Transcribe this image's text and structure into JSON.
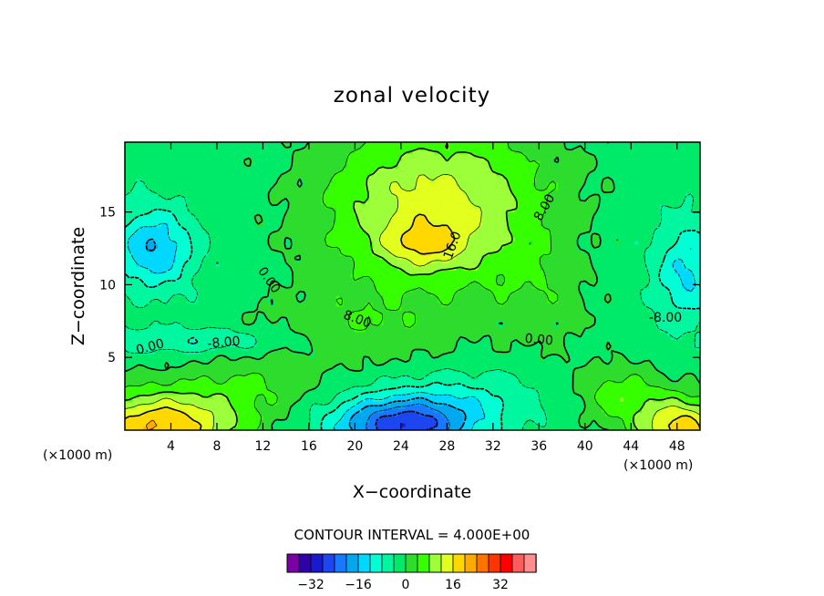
{
  "chart_data": {
    "type": "contour",
    "title": "zonal velocity",
    "xlabel": "X−coordinate",
    "ylabel": "Z−coordinate",
    "x_unit": "(×1000 m)",
    "y_unit": "(×1000 m)",
    "xlim": [
      0,
      50
    ],
    "ylim": [
      0,
      19.8
    ],
    "x_ticks": [
      4,
      8,
      12,
      16,
      20,
      24,
      28,
      32,
      36,
      40,
      44,
      48
    ],
    "x_tick_labels": [
      "4",
      "8",
      "12",
      "16",
      "20",
      "24",
      "28",
      "32",
      "36",
      "40",
      "44",
      "48"
    ],
    "y_ticks": [
      5,
      10,
      15
    ],
    "y_tick_labels": [
      "5",
      "10",
      "15"
    ],
    "contour_interval_text": "CONTOUR INTERVAL = 4.000E+00",
    "contour_labels": [
      {
        "text": "16.0",
        "x": 28.5,
        "y": 12.7,
        "angle": -70
      },
      {
        "text": "8.00",
        "x": 36.5,
        "y": 15.3,
        "angle": -60
      },
      {
        "text": "0.00",
        "x": 12.5,
        "y": 10.3,
        "angle": 55
      },
      {
        "text": "8.00",
        "x": 20.2,
        "y": 7.6,
        "angle": 20
      },
      {
        "text": "0.00",
        "x": 36.0,
        "y": 6.2,
        "angle": 5
      },
      {
        "text": "-8.00",
        "x": 47.0,
        "y": 7.7,
        "angle": 0
      },
      {
        "text": "0.00",
        "x": 2.2,
        "y": 5.7,
        "angle": -15
      },
      {
        "text": "-8.00",
        "x": 8.6,
        "y": 6.0,
        "angle": -5
      }
    ],
    "contour_style": "solid lines for positive and zero values, dashed lines for negative values",
    "colorbar": {
      "levels": [
        -36,
        -32,
        -28,
        -24,
        -20,
        -16,
        -12,
        -8,
        -4,
        0,
        4,
        8,
        12,
        16,
        20,
        24,
        28,
        32,
        36
      ],
      "colors": [
        "#7a00a6",
        "#3000a8",
        "#1a1acc",
        "#1d46f0",
        "#1a78ff",
        "#00a8f0",
        "#00d8ff",
        "#00ffd4",
        "#00f7a0",
        "#00ea6a",
        "#2ddc2d",
        "#36ff00",
        "#9cff3a",
        "#e2ff1e",
        "#ffd800",
        "#ffaa00",
        "#ff7300",
        "#ff3500",
        "#ff0000",
        "#ff5c5c",
        "#ff8e8e"
      ],
      "tick_values": [
        -32,
        -16,
        0,
        16,
        32
      ],
      "tick_labels": [
        "−32",
        "−16",
        "0",
        "16",
        "32"
      ]
    },
    "field_features": [
      {
        "desc": "positive jet maximum",
        "x": 26.0,
        "y": 12.6,
        "value": 22
      },
      {
        "desc": "upper-center positive region",
        "x": 27.0,
        "y": 15.5,
        "value": 14
      },
      {
        "desc": "negative cell left",
        "x": 2.5,
        "y": 12.5,
        "value": -20
      },
      {
        "desc": "negative cell right",
        "x": 49.0,
        "y": 11.0,
        "value": -14
      },
      {
        "desc": "negative cell bottom center",
        "x": 23.5,
        "y": 0.5,
        "value": -22
      },
      {
        "desc": "positive near-surface left",
        "x": 3.0,
        "y": 0.5,
        "value": 22
      },
      {
        "desc": "positive near-surface right",
        "x": 48.5,
        "y": 0.5,
        "value": 20
      }
    ]
  }
}
